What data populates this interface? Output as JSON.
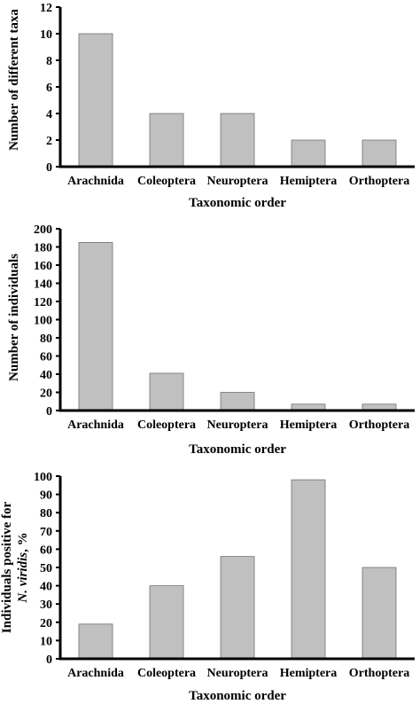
{
  "chart_data": [
    {
      "type": "bar",
      "categories": [
        "Arachnida",
        "Coleoptera",
        "Neuroptera",
        "Hemiptera",
        "Orthoptera"
      ],
      "values": [
        10,
        4,
        4,
        2,
        2
      ],
      "xlabel": "Taxonomic order",
      "ylabel": "Number of different taxa",
      "ylim": [
        0,
        12
      ],
      "yticks": [
        0,
        2,
        4,
        6,
        8,
        10,
        12
      ],
      "grid": false,
      "bar_color": "#c0c0c0"
    },
    {
      "type": "bar",
      "categories": [
        "Arachnida",
        "Coleoptera",
        "Neuroptera",
        "Hemiptera",
        "Orthoptera"
      ],
      "values": [
        185,
        41,
        20,
        7,
        7
      ],
      "xlabel": "Taxonomic order",
      "ylabel": "Number of individuals",
      "ylim": [
        0,
        200
      ],
      "yticks": [
        0,
        20,
        40,
        60,
        80,
        100,
        120,
        140,
        160,
        180,
        200
      ],
      "grid": false,
      "bar_color": "#c0c0c0"
    },
    {
      "type": "bar",
      "categories": [
        "Arachnida",
        "Coleoptera",
        "Neuroptera",
        "Hemiptera",
        "Orthoptera"
      ],
      "values": [
        19,
        40,
        56,
        98,
        50
      ],
      "xlabel": "Taxonomic order",
      "ylabel_line1": "Individuals positive for",
      "ylabel_line2_italic": "N. viridis",
      "ylabel_line2_rest": ", %",
      "ylim": [
        0,
        100
      ],
      "yticks": [
        0,
        10,
        20,
        30,
        40,
        50,
        60,
        70,
        80,
        90,
        100
      ],
      "grid": false,
      "bar_color": "#c0c0c0"
    }
  ]
}
